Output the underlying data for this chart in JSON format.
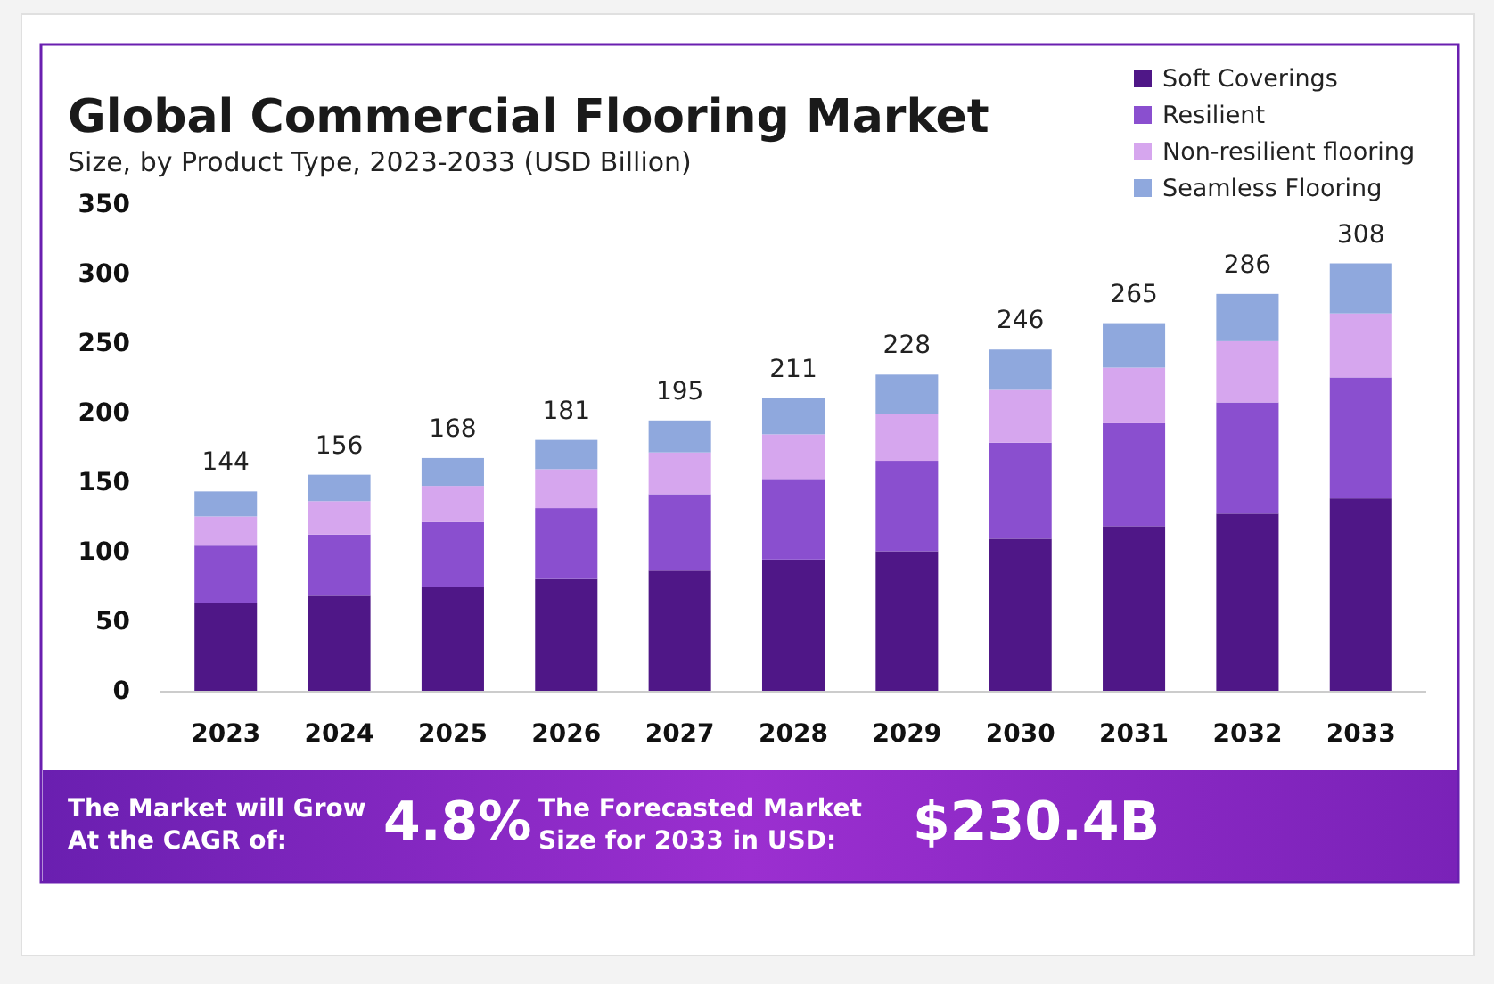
{
  "chart_data": {
    "type": "bar",
    "title": "Global Commercial Flooring Market",
    "subtitle": "Size, by Product Type, 2023-2033 (USD Billion)",
    "categories": [
      "2023",
      "2024",
      "2025",
      "2026",
      "2027",
      "2028",
      "2029",
      "2030",
      "2031",
      "2032",
      "2033"
    ],
    "stacked": true,
    "series": [
      {
        "name": "Soft Coverings",
        "color": "#4f1787",
        "values": [
          64,
          69,
          75,
          81,
          87,
          95,
          101,
          110,
          119,
          128,
          139
        ]
      },
      {
        "name": "Resilient",
        "color": "#8a4fcf",
        "values": [
          41,
          44,
          47,
          51,
          55,
          58,
          65,
          69,
          74,
          80,
          87
        ]
      },
      {
        "name": "Non-resilient flooring",
        "color": "#d6a6ee",
        "values": [
          21,
          24,
          26,
          28,
          30,
          32,
          34,
          38,
          40,
          44,
          46
        ]
      },
      {
        "name": "Seamless Flooring",
        "color": "#8fa8dd",
        "values": [
          18,
          19,
          20,
          21,
          23,
          26,
          28,
          29,
          32,
          34,
          36
        ]
      }
    ],
    "totals": [
      "144",
      "156",
      "168",
      "181",
      "195",
      "211",
      "228",
      "246",
      "265",
      "286",
      "308"
    ],
    "ylim": [
      0,
      350
    ],
    "yticks": [
      0,
      50,
      100,
      150,
      200,
      250,
      300,
      350
    ],
    "grid": false,
    "legend": "top right",
    "annotations": [
      "The Market will Grow\nAt the CAGR of:",
      "4.8%",
      "The Forecasted Market\nSize for 2033 in USD:",
      "$230.4B"
    ]
  }
}
